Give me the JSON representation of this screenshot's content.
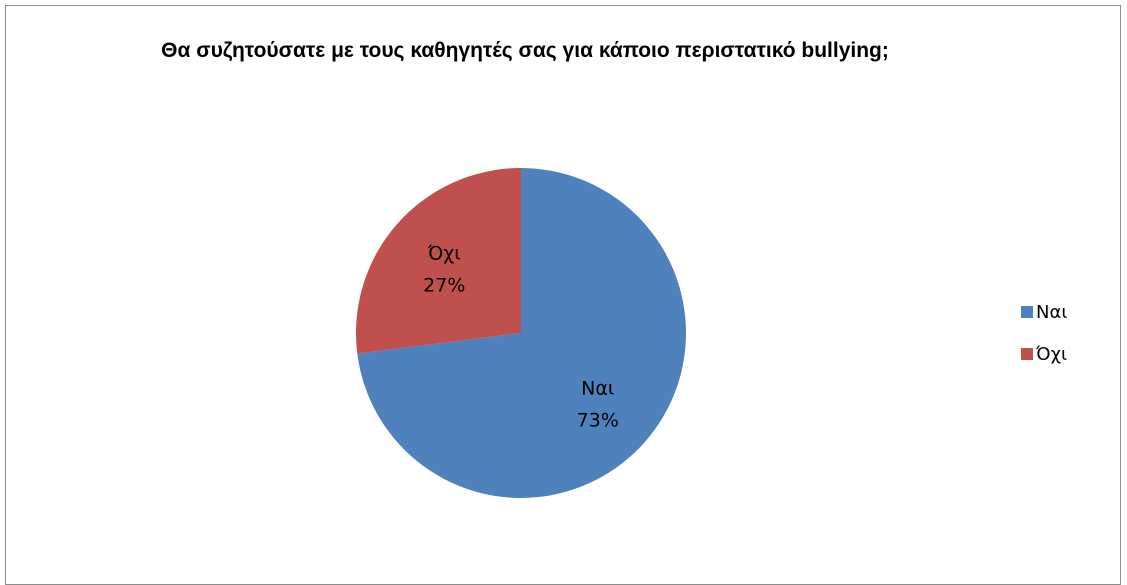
{
  "chart_data": {
    "type": "pie",
    "title": "Θα συζητούσατε με τους καθηγητές σας για κάποιο περιστατικό bullying;",
    "labels": [
      "Ναι",
      "Όχι"
    ],
    "values": [
      73,
      27
    ],
    "value_unit": "%",
    "colors": [
      "#4f81bd",
      "#c0504d"
    ],
    "data_labels": [
      {
        "category": "Ναι",
        "value": "73%"
      },
      {
        "category": "Όχι",
        "value": "27%"
      }
    ],
    "legend": {
      "position": "right",
      "entries": [
        "Ναι",
        "Όχι"
      ]
    }
  }
}
